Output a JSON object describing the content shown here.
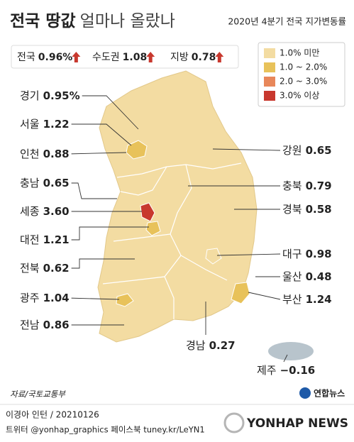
{
  "header": {
    "title_bold": "전국 땅값",
    "title_light": "얼마나 올랐나",
    "subtitle": "2020년 4분기 전국 지가변동률"
  },
  "summary": [
    {
      "label": "전국",
      "value": "0.96%"
    },
    {
      "label": "수도권",
      "value": "1.08"
    },
    {
      "label": "지방",
      "value": "0.78"
    }
  ],
  "legend": [
    {
      "label": "1.0% 미만",
      "color": "#f3dca2"
    },
    {
      "label": "1.0 ~ 2.0%",
      "color": "#e8c25a"
    },
    {
      "label": "2.0 ~ 3.0%",
      "color": "#e8875a"
    },
    {
      "label": "3.0% 이상",
      "color": "#c8382e"
    }
  ],
  "regions": [
    {
      "name": "경기",
      "value": "0.95%"
    },
    {
      "name": "서울",
      "value": "1.22"
    },
    {
      "name": "인천",
      "value": "0.88"
    },
    {
      "name": "충남",
      "value": "0.65"
    },
    {
      "name": "세종",
      "value": "3.60"
    },
    {
      "name": "대전",
      "value": "1.21"
    },
    {
      "name": "전북",
      "value": "0.62"
    },
    {
      "name": "광주",
      "value": "1.04"
    },
    {
      "name": "전남",
      "value": "0.86"
    },
    {
      "name": "강원",
      "value": "0.65"
    },
    {
      "name": "충북",
      "value": "0.79"
    },
    {
      "name": "경북",
      "value": "0.58"
    },
    {
      "name": "대구",
      "value": "0.98"
    },
    {
      "name": "울산",
      "value": "0.48"
    },
    {
      "name": "부산",
      "value": "1.24"
    },
    {
      "name": "경남",
      "value": "0.27"
    },
    {
      "name": "제주",
      "value": "−0.16"
    }
  ],
  "source": "자료/국토교통부",
  "logo": "연합뉴스",
  "credit": "이경아 인턴 / 20210126",
  "social": "트위터 @yonhap_graphics  페이스북 tuney.kr/LeYN1",
  "watermark": "YONHAP NEWS"
}
